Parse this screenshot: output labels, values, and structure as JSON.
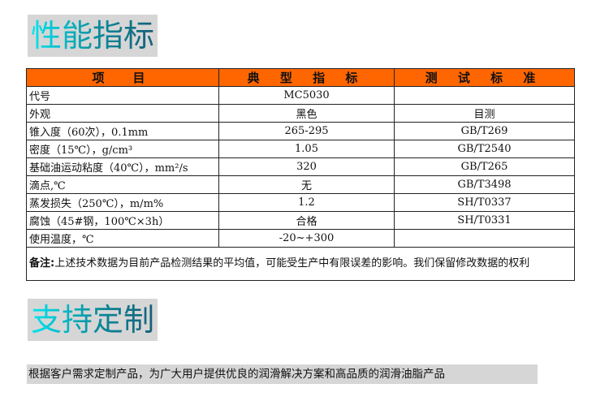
{
  "section1": {
    "title": "性能指标"
  },
  "table": {
    "headers": [
      "项　目",
      "典 型 指 标",
      "测 试 标 准"
    ],
    "rows": [
      [
        "代号",
        "MC5030",
        ""
      ],
      [
        "外观",
        "黑色",
        "目测"
      ],
      [
        "锥入度（60次），0.1mm",
        "265-295",
        "GB/T269"
      ],
      [
        "密度（15℃），g/cm³",
        "1.05",
        "GB/T2540"
      ],
      [
        "基础油运动粘度（40℃），mm²/s",
        "320",
        "GB/T265"
      ],
      [
        "滴点,℃",
        "无",
        "GB/T3498"
      ],
      [
        "蒸发损失（250℃），m/m%",
        "1.2",
        "SH/T0337"
      ],
      [
        "腐蚀（45#钢，100℃×3h）",
        "合格",
        "SH/T0331"
      ],
      [
        "使用温度，℃",
        "-20~+300",
        ""
      ]
    ],
    "note_label": "备注:",
    "note_text": "上述技术数据为目前产品检测结果的平均值，可能受生产中有限误差的影响。我们保留修改数据的权利"
  },
  "section2": {
    "title": "支持定制",
    "text": "根据客户需求定制产品，为广大用户提供优良的润滑解决方案和高品质的润滑油脂产品"
  },
  "colors": {
    "header": "#ff6600",
    "title_bg": "#d6d6d6"
  }
}
